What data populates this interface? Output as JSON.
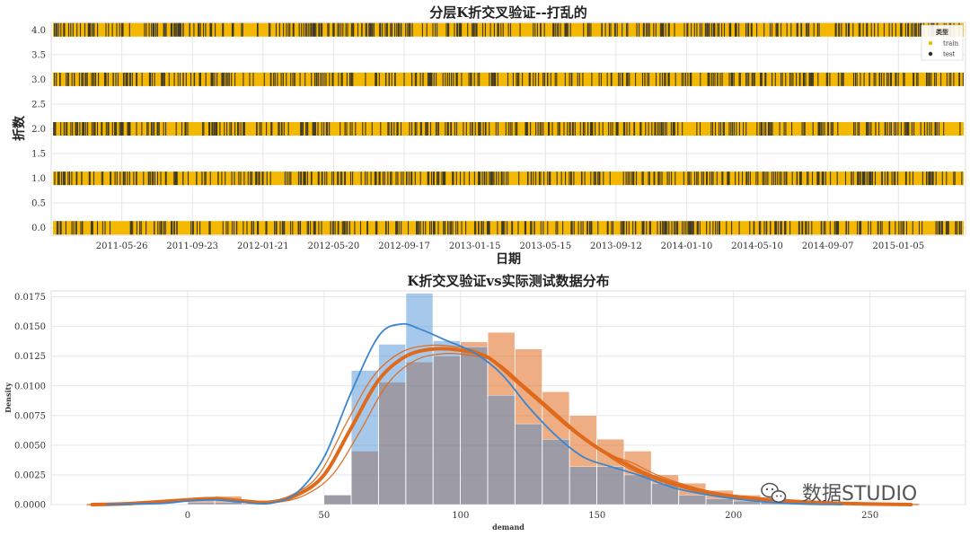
{
  "chart_data": [
    {
      "type": "strip",
      "title": "分层K折交叉验证--打乱的",
      "xlabel": "日期",
      "ylabel": "折数",
      "x_tick_labels": [
        "2011-05-26",
        "2011-09-23",
        "2012-01-21",
        "2012-05-20",
        "2012-09-17",
        "2013-01-15",
        "2013-05-15",
        "2013-09-12",
        "2014-01-10",
        "2014-05-10",
        "2014-09-07",
        "2015-01-05"
      ],
      "x_range": [
        "2011-01-26",
        "2015-04-29"
      ],
      "y_ticks": [
        0.0,
        0.5,
        1.0,
        1.5,
        2.0,
        2.5,
        3.0,
        3.5,
        4.0
      ],
      "y_tick_labels": [
        "0.0",
        "0.5",
        "1.0",
        "1.5",
        "2.0",
        "2.5",
        "3.0",
        "3.5",
        "4.0"
      ],
      "ylim": [
        -0.15,
        4.15
      ],
      "folds": [
        0,
        1,
        2,
        3,
        4
      ],
      "test_fraction": 0.2,
      "series": [
        {
          "name": "train",
          "color": "#f5b800"
        },
        {
          "name": "test",
          "color": "#2b2b2b"
        }
      ],
      "legend": {
        "title": "类型",
        "position": "top-right"
      },
      "grid": true
    },
    {
      "type": "histogram_kde",
      "title": "K折交叉验证vs实际测试数据分布",
      "xlabel": "demand",
      "ylabel": "Density",
      "xlim": [
        -50,
        285
      ],
      "ylim": [
        0,
        0.018
      ],
      "x_ticks": [
        0,
        50,
        100,
        150,
        200,
        250
      ],
      "y_ticks": [
        0.0,
        0.0025,
        0.005,
        0.0075,
        0.01,
        0.0125,
        0.015,
        0.0175
      ],
      "y_tick_labels": [
        "0.0000",
        "0.0025",
        "0.0050",
        "0.0075",
        "0.0100",
        "0.0125",
        "0.0150",
        "0.0175"
      ],
      "bins": [
        -30,
        -20,
        -10,
        0,
        10,
        20,
        30,
        40,
        50,
        60,
        70,
        80,
        90,
        100,
        110,
        120,
        130,
        140,
        150,
        160,
        170,
        180,
        190,
        200,
        210,
        220,
        230,
        240,
        250,
        260,
        270
      ],
      "series": [
        {
          "color": "#3a86d0",
          "densities": [
            0,
            0,
            0,
            0.0002,
            0.0002,
            0,
            0,
            0,
            0.0008,
            0.0113,
            0.0135,
            0.0178,
            0.0138,
            0.0133,
            0.0092,
            0.0068,
            0.0055,
            0.0032,
            0.0032,
            0.0025,
            0.0018,
            0.0008,
            0.0005,
            0.0003,
            0.0002,
            0,
            0,
            0,
            0,
            0
          ],
          "kde": [
            [
              -30,
              0
            ],
            [
              -10,
              0.0001
            ],
            [
              0,
              0.0003
            ],
            [
              10,
              0.0004
            ],
            [
              20,
              0.0002
            ],
            [
              30,
              0.0001
            ],
            [
              40,
              0.001
            ],
            [
              50,
              0.004
            ],
            [
              60,
              0.0095
            ],
            [
              70,
              0.0142
            ],
            [
              78,
              0.0152
            ],
            [
              85,
              0.0148
            ],
            [
              95,
              0.0138
            ],
            [
              105,
              0.0128
            ],
            [
              115,
              0.011
            ],
            [
              125,
              0.0082
            ],
            [
              135,
              0.0058
            ],
            [
              145,
              0.004
            ],
            [
              155,
              0.0032
            ],
            [
              165,
              0.0025
            ],
            [
              180,
              0.0013
            ],
            [
              200,
              0.0005
            ],
            [
              220,
              0.0001
            ],
            [
              240,
              0
            ]
          ]
        },
        {
          "color": "#e06a1c",
          "densities": [
            0.0001,
            0,
            0,
            0.0005,
            0.0007,
            0.0001,
            0,
            0,
            0.0008,
            0.0045,
            0.0103,
            0.012,
            0.0125,
            0.0137,
            0.0145,
            0.0131,
            0.0095,
            0.0075,
            0.0055,
            0.0045,
            0.0025,
            0.0018,
            0.0012,
            0.0008,
            0.0005,
            0.0002,
            0.0001,
            0,
            0,
            0
          ],
          "kde": [
            [
              -35,
              0
            ],
            [
              -20,
              0.0001
            ],
            [
              0,
              0.0004
            ],
            [
              10,
              0.0005
            ],
            [
              20,
              0.0003
            ],
            [
              30,
              0.0002
            ],
            [
              40,
              0.0008
            ],
            [
              50,
              0.0025
            ],
            [
              60,
              0.0065
            ],
            [
              70,
              0.0105
            ],
            [
              80,
              0.0125
            ],
            [
              90,
              0.0131
            ],
            [
              100,
              0.013
            ],
            [
              110,
              0.0124
            ],
            [
              120,
              0.0105
            ],
            [
              130,
              0.0085
            ],
            [
              140,
              0.0065
            ],
            [
              150,
              0.0048
            ],
            [
              160,
              0.0035
            ],
            [
              170,
              0.0024
            ],
            [
              185,
              0.0013
            ],
            [
              200,
              0.0007
            ],
            [
              220,
              0.0003
            ],
            [
              240,
              0.0001
            ],
            [
              265,
              0
            ]
          ]
        }
      ],
      "grid": true
    }
  ],
  "watermark": {
    "text": "数据STUDIO",
    "icon": "wechat-icon"
  }
}
